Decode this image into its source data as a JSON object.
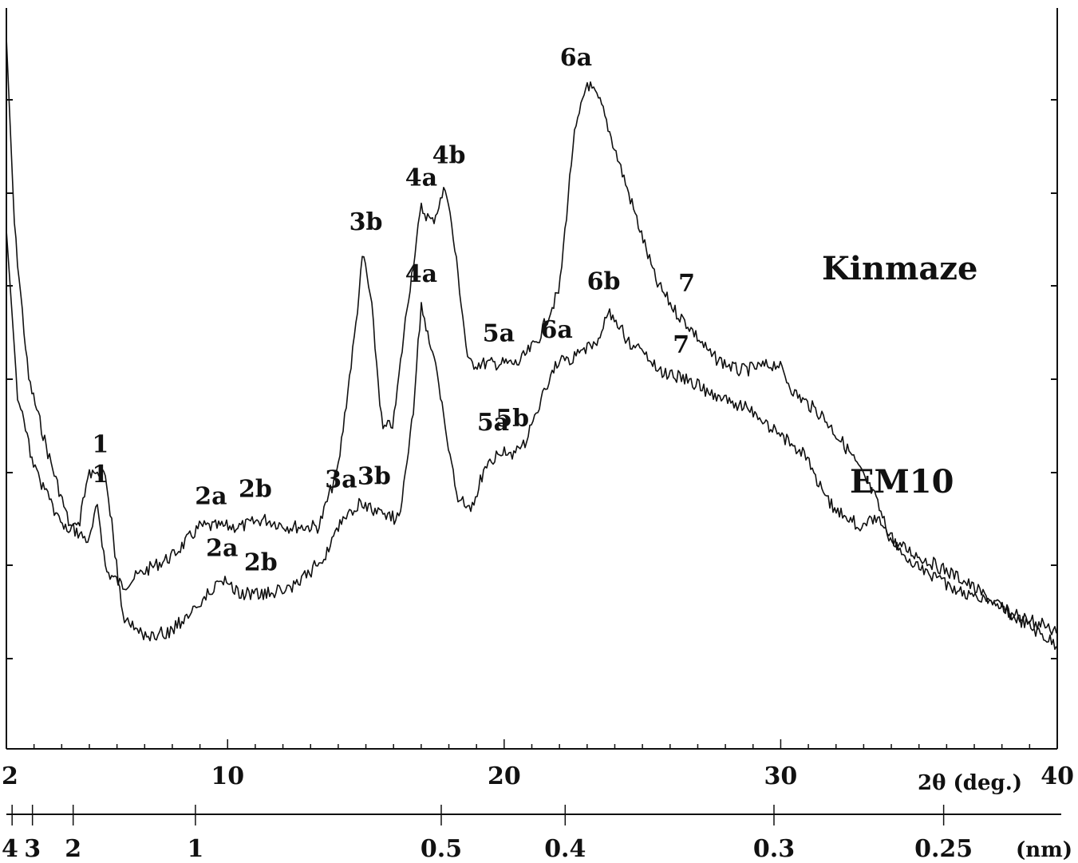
{
  "chart_data": {
    "type": "line",
    "title": "",
    "xlabel": "2θ (deg.)",
    "x2label": "(nm)",
    "xlim": [
      2,
      40
    ],
    "ylabel": "",
    "grid": false,
    "x_ticks": [
      "2",
      "10",
      "20",
      "30",
      "40"
    ],
    "d_ticks": [
      {
        "label": "4",
        "d": 4.0
      },
      {
        "label": "3",
        "d": 3.0
      },
      {
        "label": "2",
        "d": 2.0
      },
      {
        "label": "1",
        "d": 1.0
      },
      {
        "label": "0.5",
        "d": 0.5
      },
      {
        "label": "0.4",
        "d": 0.4
      },
      {
        "label": "0.3",
        "d": 0.3
      },
      {
        "label": "0.25",
        "d": 0.25
      }
    ],
    "series": [
      {
        "name": "Kinmaze",
        "points": [
          [
            2.0,
            0.04
          ],
          [
            2.3,
            0.3
          ],
          [
            2.8,
            0.5
          ],
          [
            3.5,
            0.6
          ],
          [
            4.3,
            0.7
          ],
          [
            5.0,
            0.72
          ],
          [
            5.3,
            0.67
          ],
          [
            5.6,
            0.76
          ],
          [
            6.2,
            0.78
          ],
          [
            7.0,
            0.76
          ],
          [
            8.0,
            0.74
          ],
          [
            9.0,
            0.7
          ],
          [
            9.8,
            0.7
          ],
          [
            10.5,
            0.7
          ],
          [
            11.3,
            0.69
          ],
          [
            12.2,
            0.7
          ],
          [
            13.3,
            0.7
          ],
          [
            14.0,
            0.62
          ],
          [
            14.6,
            0.44
          ],
          [
            14.9,
            0.33
          ],
          [
            15.2,
            0.4
          ],
          [
            15.6,
            0.57
          ],
          [
            16.0,
            0.56
          ],
          [
            16.5,
            0.4
          ],
          [
            17.0,
            0.27
          ],
          [
            17.4,
            0.29
          ],
          [
            17.9,
            0.24
          ],
          [
            18.3,
            0.35
          ],
          [
            18.7,
            0.48
          ],
          [
            19.5,
            0.48
          ],
          [
            20.5,
            0.48
          ],
          [
            21.2,
            0.45
          ],
          [
            22.0,
            0.38
          ],
          [
            22.5,
            0.18
          ],
          [
            23.0,
            0.1
          ],
          [
            23.5,
            0.13
          ],
          [
            24.5,
            0.25
          ],
          [
            25.5,
            0.37
          ],
          [
            26.2,
            0.41
          ],
          [
            26.7,
            0.43
          ],
          [
            27.5,
            0.47
          ],
          [
            28.5,
            0.49
          ],
          [
            29.9,
            0.48
          ],
          [
            30.5,
            0.52
          ],
          [
            31.5,
            0.55
          ],
          [
            32.5,
            0.6
          ],
          [
            33.4,
            0.66
          ],
          [
            34.0,
            0.72
          ],
          [
            35.0,
            0.74
          ],
          [
            36.5,
            0.77
          ],
          [
            38.0,
            0.81
          ],
          [
            40.0,
            0.86
          ]
        ]
      },
      {
        "name": "EM10",
        "points": [
          [
            2.0,
            0.3
          ],
          [
            2.4,
            0.52
          ],
          [
            3.0,
            0.62
          ],
          [
            4.0,
            0.7
          ],
          [
            4.6,
            0.7
          ],
          [
            5.0,
            0.63
          ],
          [
            5.6,
            0.63
          ],
          [
            6.2,
            0.82
          ],
          [
            7.0,
            0.85
          ],
          [
            8.0,
            0.84
          ],
          [
            9.0,
            0.8
          ],
          [
            9.8,
            0.77
          ],
          [
            10.5,
            0.79
          ],
          [
            11.5,
            0.79
          ],
          [
            12.5,
            0.78
          ],
          [
            13.5,
            0.74
          ],
          [
            14.3,
            0.68
          ],
          [
            14.8,
            0.67
          ],
          [
            15.3,
            0.68
          ],
          [
            16.2,
            0.69
          ],
          [
            16.7,
            0.55
          ],
          [
            17.0,
            0.4
          ],
          [
            17.5,
            0.48
          ],
          [
            18.3,
            0.66
          ],
          [
            18.8,
            0.68
          ],
          [
            19.3,
            0.62
          ],
          [
            19.8,
            0.6
          ],
          [
            20.6,
            0.6
          ],
          [
            21.3,
            0.53
          ],
          [
            21.9,
            0.48
          ],
          [
            22.6,
            0.47
          ],
          [
            23.4,
            0.45
          ],
          [
            23.8,
            0.41
          ],
          [
            24.5,
            0.45
          ],
          [
            25.2,
            0.47
          ],
          [
            25.6,
            0.49
          ],
          [
            26.5,
            0.5
          ],
          [
            27.5,
            0.52
          ],
          [
            28.8,
            0.54
          ],
          [
            29.8,
            0.57
          ],
          [
            30.8,
            0.6
          ],
          [
            31.8,
            0.67
          ],
          [
            32.9,
            0.7
          ],
          [
            33.5,
            0.69
          ],
          [
            34.5,
            0.74
          ],
          [
            36.0,
            0.78
          ],
          [
            37.5,
            0.8
          ],
          [
            38.5,
            0.82
          ],
          [
            40.0,
            0.84
          ]
        ]
      }
    ],
    "peak_labels": {
      "Kinmaze": [
        {
          "label": "1",
          "x": 5.4
        },
        {
          "label": "2a",
          "x": 9.4
        },
        {
          "label": "2b",
          "x": 11.0
        },
        {
          "label": "3b",
          "x": 15.0
        },
        {
          "label": "4a",
          "x": 17.0
        },
        {
          "label": "4b",
          "x": 18.0
        },
        {
          "label": "5a",
          "x": 19.8
        },
        {
          "label": "6a",
          "x": 22.6
        },
        {
          "label": "7",
          "x": 26.6
        }
      ],
      "EM10": [
        {
          "label": "1",
          "x": 5.4
        },
        {
          "label": "2a",
          "x": 9.8
        },
        {
          "label": "2b",
          "x": 11.2
        },
        {
          "label": "3a",
          "x": 14.1
        },
        {
          "label": "3b",
          "x": 15.3
        },
        {
          "label": "4a",
          "x": 17.0
        },
        {
          "label": "5a",
          "x": 19.6
        },
        {
          "label": "5b",
          "x": 20.3
        },
        {
          "label": "6a",
          "x": 21.9
        },
        {
          "label": "6b",
          "x": 23.6
        },
        {
          "label": "7",
          "x": 26.4
        }
      ]
    }
  }
}
